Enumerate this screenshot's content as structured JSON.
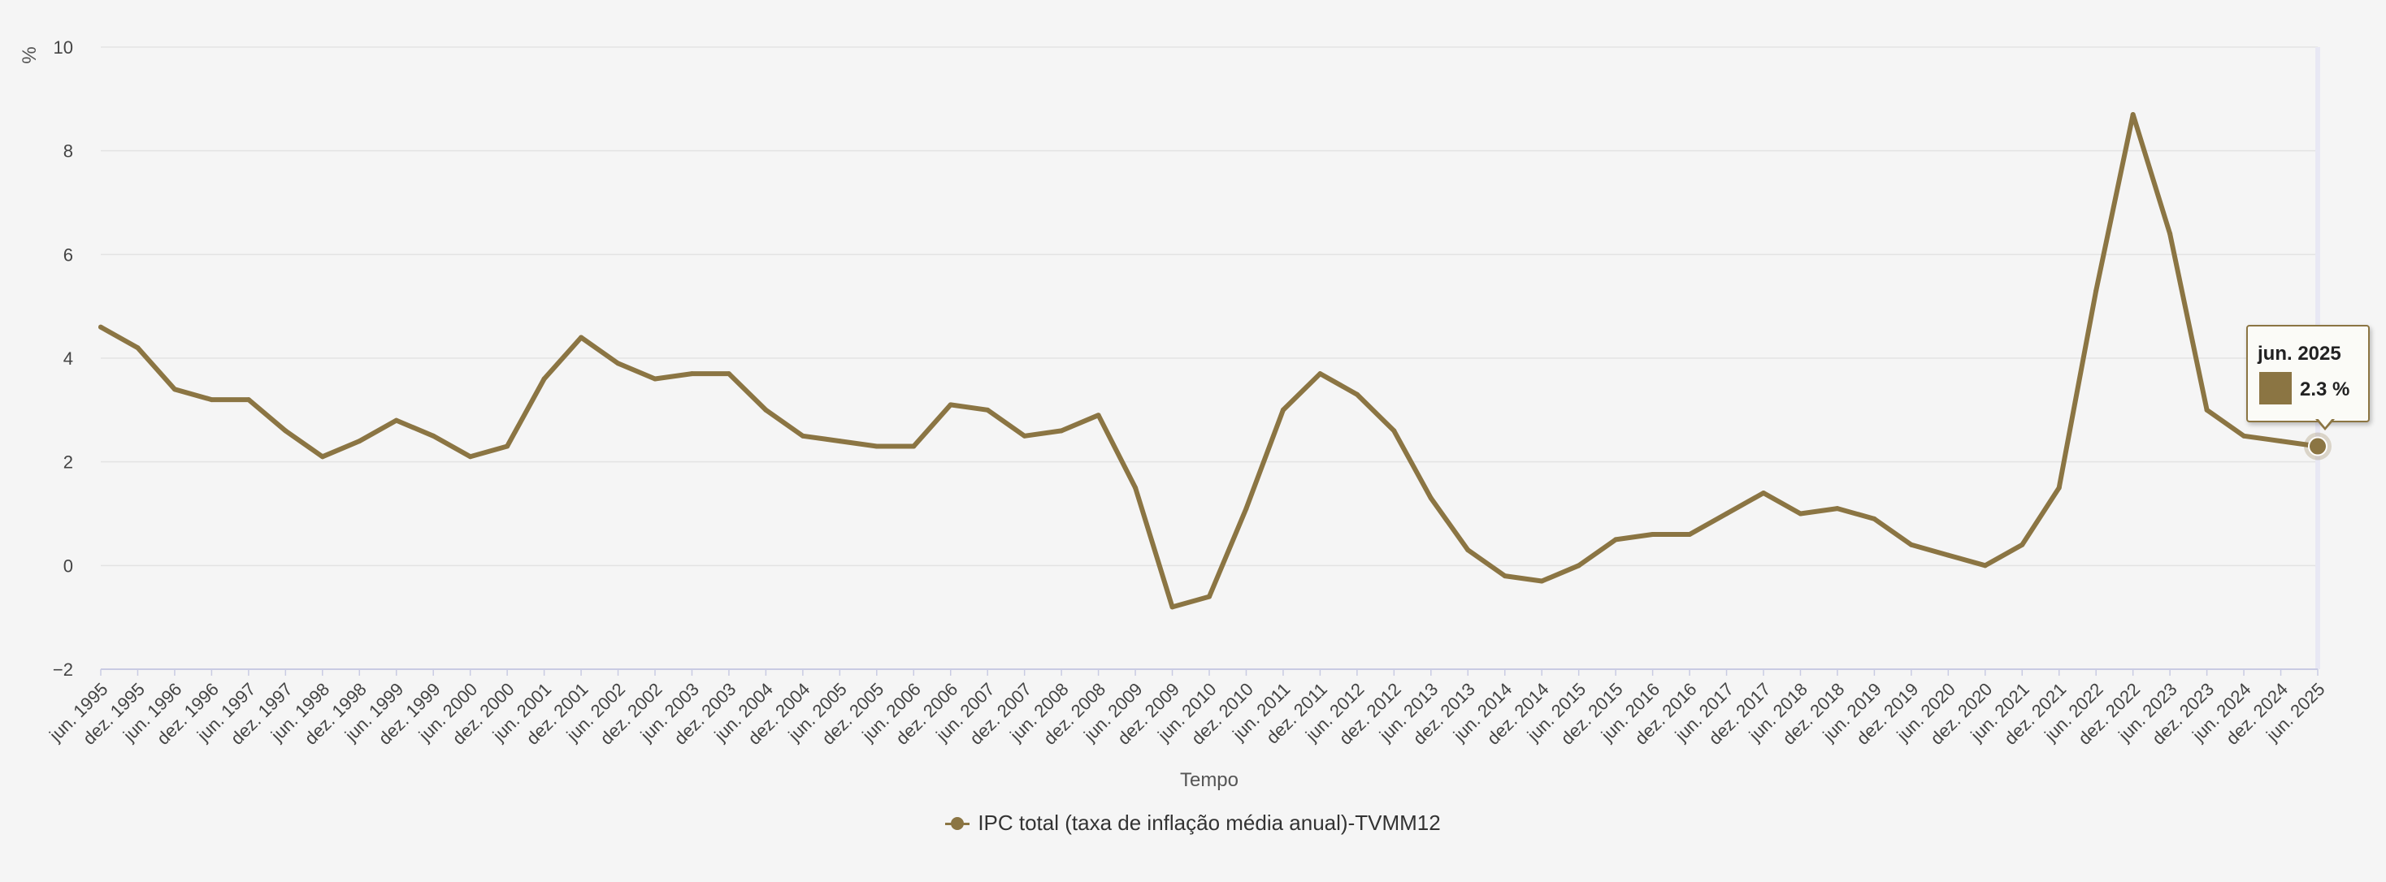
{
  "colors": {
    "series": "#8b7543",
    "grid": "#e3e3e3",
    "crosshair": "#e8e8f4",
    "background": "#f5f5f5"
  },
  "chart_data": {
    "type": "line",
    "title": "",
    "xlabel": "Tempo",
    "ylabel": "%",
    "ylim": [
      -2,
      10
    ],
    "yticks": [
      "10",
      "8",
      "6",
      "4",
      "2",
      "0",
      "−2"
    ],
    "ytick_values": [
      10,
      8,
      6,
      4,
      2,
      0,
      -2
    ],
    "xlim": [
      "jun. 1995",
      "jun. 2025"
    ],
    "grid": "horizontal",
    "legend_position": "bottom-center",
    "x_tick_labels": [
      "jun. 1995",
      "dez. 1995",
      "jun. 1996",
      "dez. 1996",
      "jun. 1997",
      "dez. 1997",
      "jun. 1998",
      "dez. 1998",
      "jun. 1999",
      "dez. 1999",
      "jun. 2000",
      "dez. 2000",
      "jun. 2001",
      "dez. 2001",
      "jun. 2002",
      "dez. 2002",
      "jun. 2003",
      "dez. 2003",
      "jun. 2004",
      "dez. 2004",
      "jun. 2005",
      "dez. 2005",
      "jun. 2006",
      "dez. 2006",
      "jun. 2007",
      "dez. 2007",
      "jun. 2008",
      "dez. 2008",
      "jun. 2009",
      "dez. 2009",
      "jun. 2010",
      "dez. 2010",
      "jun. 2011",
      "dez. 2011",
      "jun. 2012",
      "dez. 2012",
      "jun. 2013",
      "dez. 2013",
      "jun. 2014",
      "dez. 2014",
      "jun. 2015",
      "dez. 2015",
      "jun. 2016",
      "dez. 2016",
      "jun. 2017",
      "dez. 2017",
      "jun. 2018",
      "dez. 2018",
      "jun. 2019",
      "dez. 2019",
      "jun. 2020",
      "dez. 2020",
      "jun. 2021",
      "dez. 2021",
      "jun. 2022",
      "dez. 2022",
      "jun. 2023",
      "dez. 2023",
      "jun. 2024",
      "dez. 2024",
      "jun. 2025"
    ],
    "series": [
      {
        "name": "IPC total (taxa de inflação média anual)-TVMM12",
        "x": [
          "jun. 1995",
          "dez. 1995",
          "jun. 1996",
          "dez. 1996",
          "jun. 1997",
          "dez. 1997",
          "jun. 1998",
          "dez. 1998",
          "jun. 1999",
          "dez. 1999",
          "jun. 2000",
          "dez. 2000",
          "jun. 2001",
          "dez. 2001",
          "jun. 2002",
          "dez. 2002",
          "jun. 2003",
          "dez. 2003",
          "jun. 2004",
          "dez. 2004",
          "jun. 2005",
          "dez. 2005",
          "jun. 2006",
          "dez. 2006",
          "jun. 2007",
          "dez. 2007",
          "jun. 2008",
          "dez. 2008",
          "jun. 2009",
          "dez. 2009",
          "jun. 2010",
          "dez. 2010",
          "jun. 2011",
          "dez. 2011",
          "jun. 2012",
          "dez. 2012",
          "jun. 2013",
          "dez. 2013",
          "jun. 2014",
          "dez. 2014",
          "jun. 2015",
          "dez. 2015",
          "jun. 2016",
          "dez. 2016",
          "jun. 2017",
          "dez. 2017",
          "jun. 2018",
          "dez. 2018",
          "jun. 2019",
          "dez. 2019",
          "jun. 2020",
          "dez. 2020",
          "jun. 2021",
          "dez. 2021",
          "jun. 2022",
          "dez. 2022",
          "jun. 2023",
          "dez. 2023",
          "jun. 2024",
          "dez. 2024",
          "jun. 2025"
        ],
        "values": [
          4.6,
          4.2,
          3.4,
          3.2,
          3.2,
          2.6,
          2.1,
          2.4,
          2.8,
          2.5,
          2.1,
          2.3,
          3.6,
          4.4,
          3.9,
          3.6,
          3.7,
          3.7,
          3.0,
          2.5,
          2.4,
          2.3,
          2.3,
          3.1,
          3.0,
          2.5,
          2.6,
          2.9,
          1.5,
          -0.8,
          -0.6,
          1.1,
          3.0,
          3.7,
          3.3,
          2.6,
          1.3,
          0.3,
          -0.2,
          -0.3,
          0.0,
          0.5,
          0.6,
          0.6,
          1.0,
          1.4,
          1.0,
          1.1,
          0.9,
          0.4,
          0.2,
          0.0,
          0.4,
          1.5,
          5.3,
          8.7,
          6.4,
          3.0,
          2.5,
          2.4,
          2.3
        ]
      }
    ]
  },
  "tooltip": {
    "date": "jun. 2025",
    "value": "2.3 %"
  }
}
